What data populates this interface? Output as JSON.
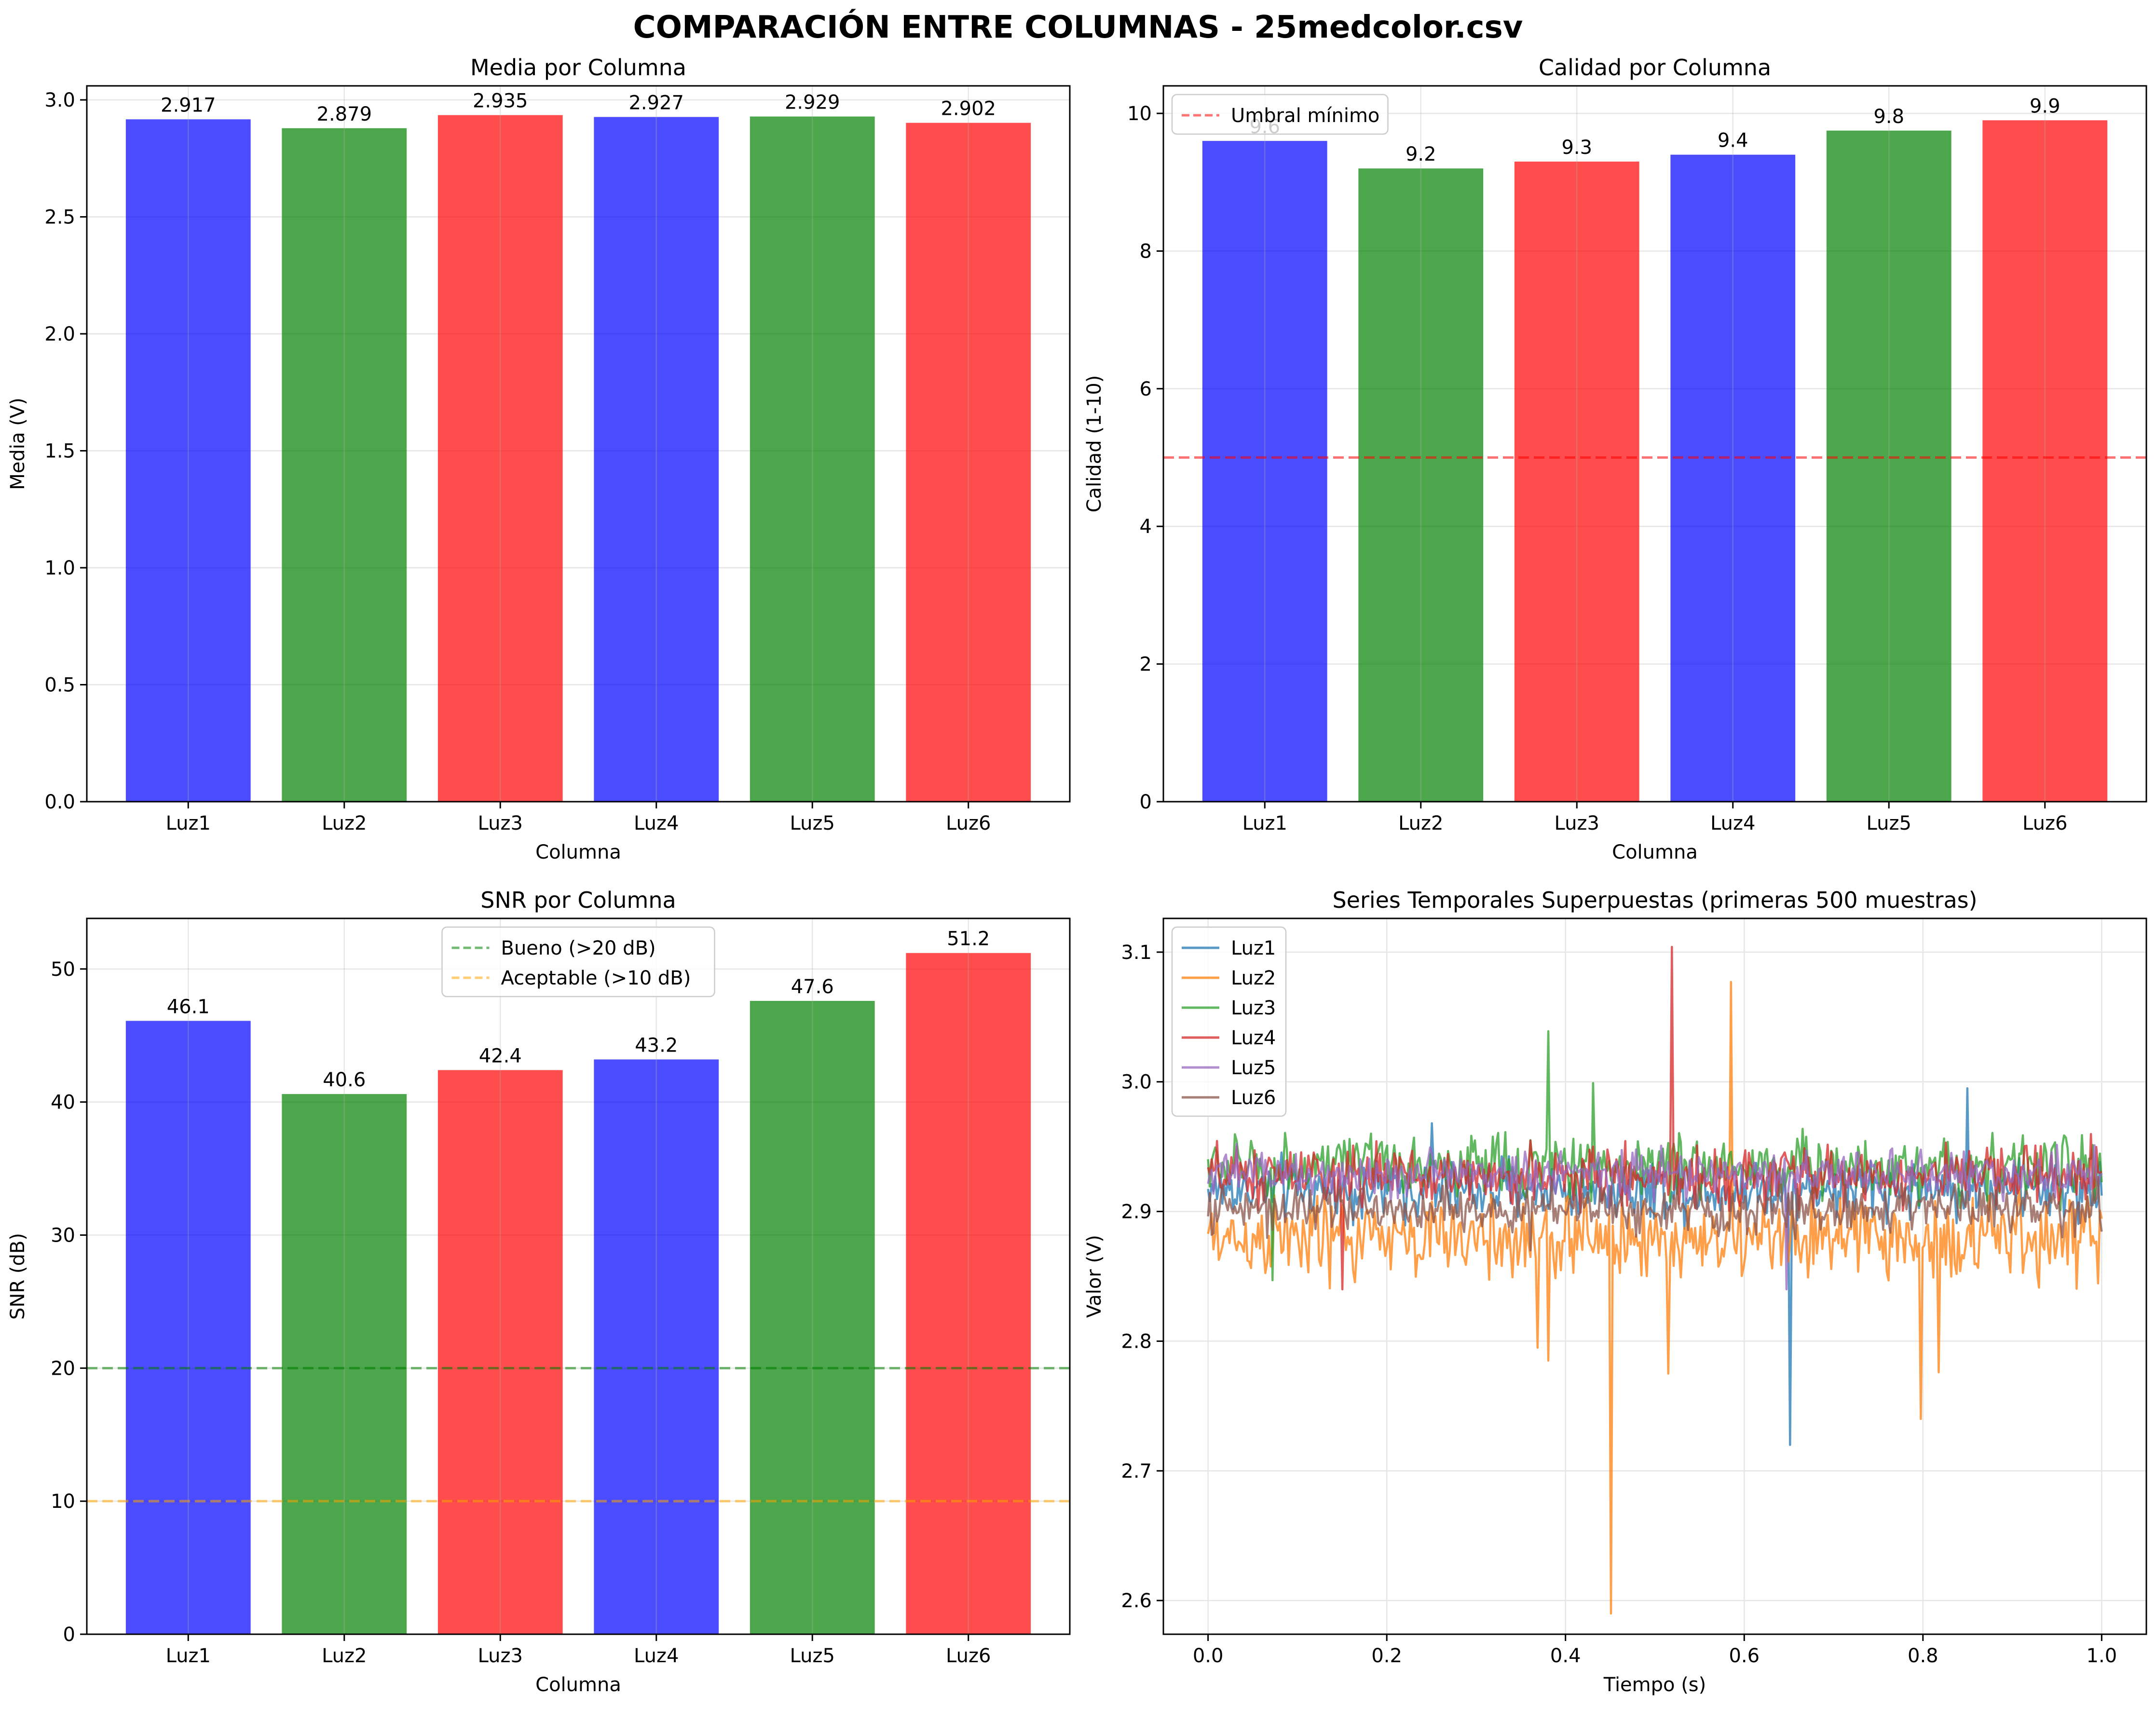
{
  "figure": {
    "suptitle": "COMPARACIÓN ENTRE COLUMNAS - 25medcolor.csv"
  },
  "colors": {
    "blue": "#0000ff",
    "green": "#008000",
    "red": "#ff0000",
    "grid": "#e6e6e6",
    "threshold_red": "#ff0000",
    "threshold_green": "#008000",
    "threshold_orange": "#ffa500",
    "series": [
      "#1f77b4",
      "#ff7f0e",
      "#2ca02c",
      "#d62728",
      "#9467bd",
      "#8c564b"
    ]
  },
  "chart_data": [
    {
      "id": "media",
      "type": "bar",
      "title": "Media por Columna",
      "xlabel": "Columna",
      "ylabel": "Media (V)",
      "categories": [
        "Luz1",
        "Luz2",
        "Luz3",
        "Luz4",
        "Luz5",
        "Luz6"
      ],
      "values": [
        2.917,
        2.879,
        2.935,
        2.927,
        2.929,
        2.902
      ],
      "value_labels": [
        "2.917",
        "2.879",
        "2.935",
        "2.927",
        "2.929",
        "2.902"
      ],
      "bar_colors": [
        "blue",
        "green",
        "red",
        "blue",
        "green",
        "red"
      ],
      "ylim": [
        0,
        3.06
      ],
      "yticks": [
        "0.0",
        "0.5",
        "1.0",
        "1.5",
        "2.0",
        "2.5",
        "3.0"
      ],
      "ytick_values": [
        0,
        0.5,
        1.0,
        1.5,
        2.0,
        2.5,
        3.0
      ],
      "grid": true
    },
    {
      "id": "calidad",
      "type": "bar",
      "title": "Calidad por Columna",
      "xlabel": "Columna",
      "ylabel": "Calidad (1-10)",
      "categories": [
        "Luz1",
        "Luz2",
        "Luz3",
        "Luz4",
        "Luz5",
        "Luz6"
      ],
      "values": [
        9.6,
        9.2,
        9.3,
        9.4,
        9.75,
        9.9
      ],
      "value_labels": [
        "9.6",
        "9.2",
        "9.3",
        "9.4",
        "9.8",
        "9.9"
      ],
      "bar_colors": [
        "blue",
        "green",
        "red",
        "blue",
        "green",
        "red"
      ],
      "ylim": [
        0,
        10.4
      ],
      "yticks": [
        "0",
        "2",
        "4",
        "6",
        "8",
        "10"
      ],
      "ytick_values": [
        0,
        2,
        4,
        6,
        8,
        10
      ],
      "hlines": [
        {
          "y": 5,
          "color": "threshold_red",
          "label": "Umbral mínimo"
        }
      ],
      "legend": "top-left",
      "grid": true
    },
    {
      "id": "snr",
      "type": "bar",
      "title": "SNR por Columna",
      "xlabel": "Columna",
      "ylabel": "SNR (dB)",
      "categories": [
        "Luz1",
        "Luz2",
        "Luz3",
        "Luz4",
        "Luz5",
        "Luz6"
      ],
      "values": [
        46.1,
        40.6,
        42.4,
        43.2,
        47.6,
        51.2
      ],
      "value_labels": [
        "46.1",
        "40.6",
        "42.4",
        "43.2",
        "47.6",
        "51.2"
      ],
      "bar_colors": [
        "blue",
        "green",
        "red",
        "blue",
        "green",
        "red"
      ],
      "ylim": [
        0,
        53.8
      ],
      "yticks": [
        "0",
        "10",
        "20",
        "30",
        "40",
        "50"
      ],
      "ytick_values": [
        0,
        10,
        20,
        30,
        40,
        50
      ],
      "hlines": [
        {
          "y": 20,
          "color": "threshold_green",
          "label": "Bueno (>20 dB)"
        },
        {
          "y": 10,
          "color": "threshold_orange",
          "label": "Aceptable (>10 dB)"
        }
      ],
      "legend": "top-center",
      "grid": true
    },
    {
      "id": "series",
      "type": "line",
      "title": "Series Temporales Superpuestas (primeras 500 muestras)",
      "xlabel": "Tiempo (s)",
      "ylabel": "Valor (V)",
      "xlim": [
        -0.05,
        1.05
      ],
      "ylim": [
        2.574,
        3.126
      ],
      "xticks": [
        "0.0",
        "0.2",
        "0.4",
        "0.6",
        "0.8",
        "1.0"
      ],
      "xtick_values": [
        0,
        0.2,
        0.4,
        0.6,
        0.8,
        1.0
      ],
      "yticks": [
        "2.6",
        "2.7",
        "2.8",
        "2.9",
        "3.0",
        "3.1"
      ],
      "ytick_values": [
        2.6,
        2.7,
        2.8,
        2.9,
        3.0,
        3.1
      ],
      "samples": 500,
      "legend": "top-left",
      "grid": true,
      "series": [
        {
          "name": "Luz1",
          "mean": 2.917,
          "noise": 0.011,
          "spikes": [
            {
              "x": 0.651,
              "y": 2.72
            },
            {
              "x": 0.849,
              "y": 2.995
            },
            {
              "x": 0.25,
              "y": 2.968
            }
          ]
        },
        {
          "name": "Luz2",
          "mean": 2.879,
          "noise": 0.016,
          "spikes": [
            {
              "x": 0.451,
              "y": 2.59
            },
            {
              "x": 0.585,
              "y": 3.077
            },
            {
              "x": 0.38,
              "y": 2.785
            },
            {
              "x": 0.797,
              "y": 2.74
            },
            {
              "x": 0.515,
              "y": 2.775
            },
            {
              "x": 0.818,
              "y": 2.776
            },
            {
              "x": 0.369,
              "y": 2.795
            }
          ]
        },
        {
          "name": "Luz3",
          "mean": 2.935,
          "noise": 0.012,
          "spikes": [
            {
              "x": 0.38,
              "y": 3.039
            },
            {
              "x": 0.43,
              "y": 2.999
            },
            {
              "x": 0.072,
              "y": 2.847
            }
          ]
        },
        {
          "name": "Luz4",
          "mean": 2.927,
          "noise": 0.011,
          "spikes": [
            {
              "x": 0.519,
              "y": 3.104
            },
            {
              "x": 0.15,
              "y": 2.84
            }
          ]
        },
        {
          "name": "Luz5",
          "mean": 2.929,
          "noise": 0.009,
          "spikes": [
            {
              "x": 0.648,
              "y": 2.84
            }
          ]
        },
        {
          "name": "Luz6",
          "mean": 2.902,
          "noise": 0.009,
          "spikes": [
            {
              "x": 0.36,
              "y": 2.87
            }
          ]
        }
      ]
    }
  ]
}
